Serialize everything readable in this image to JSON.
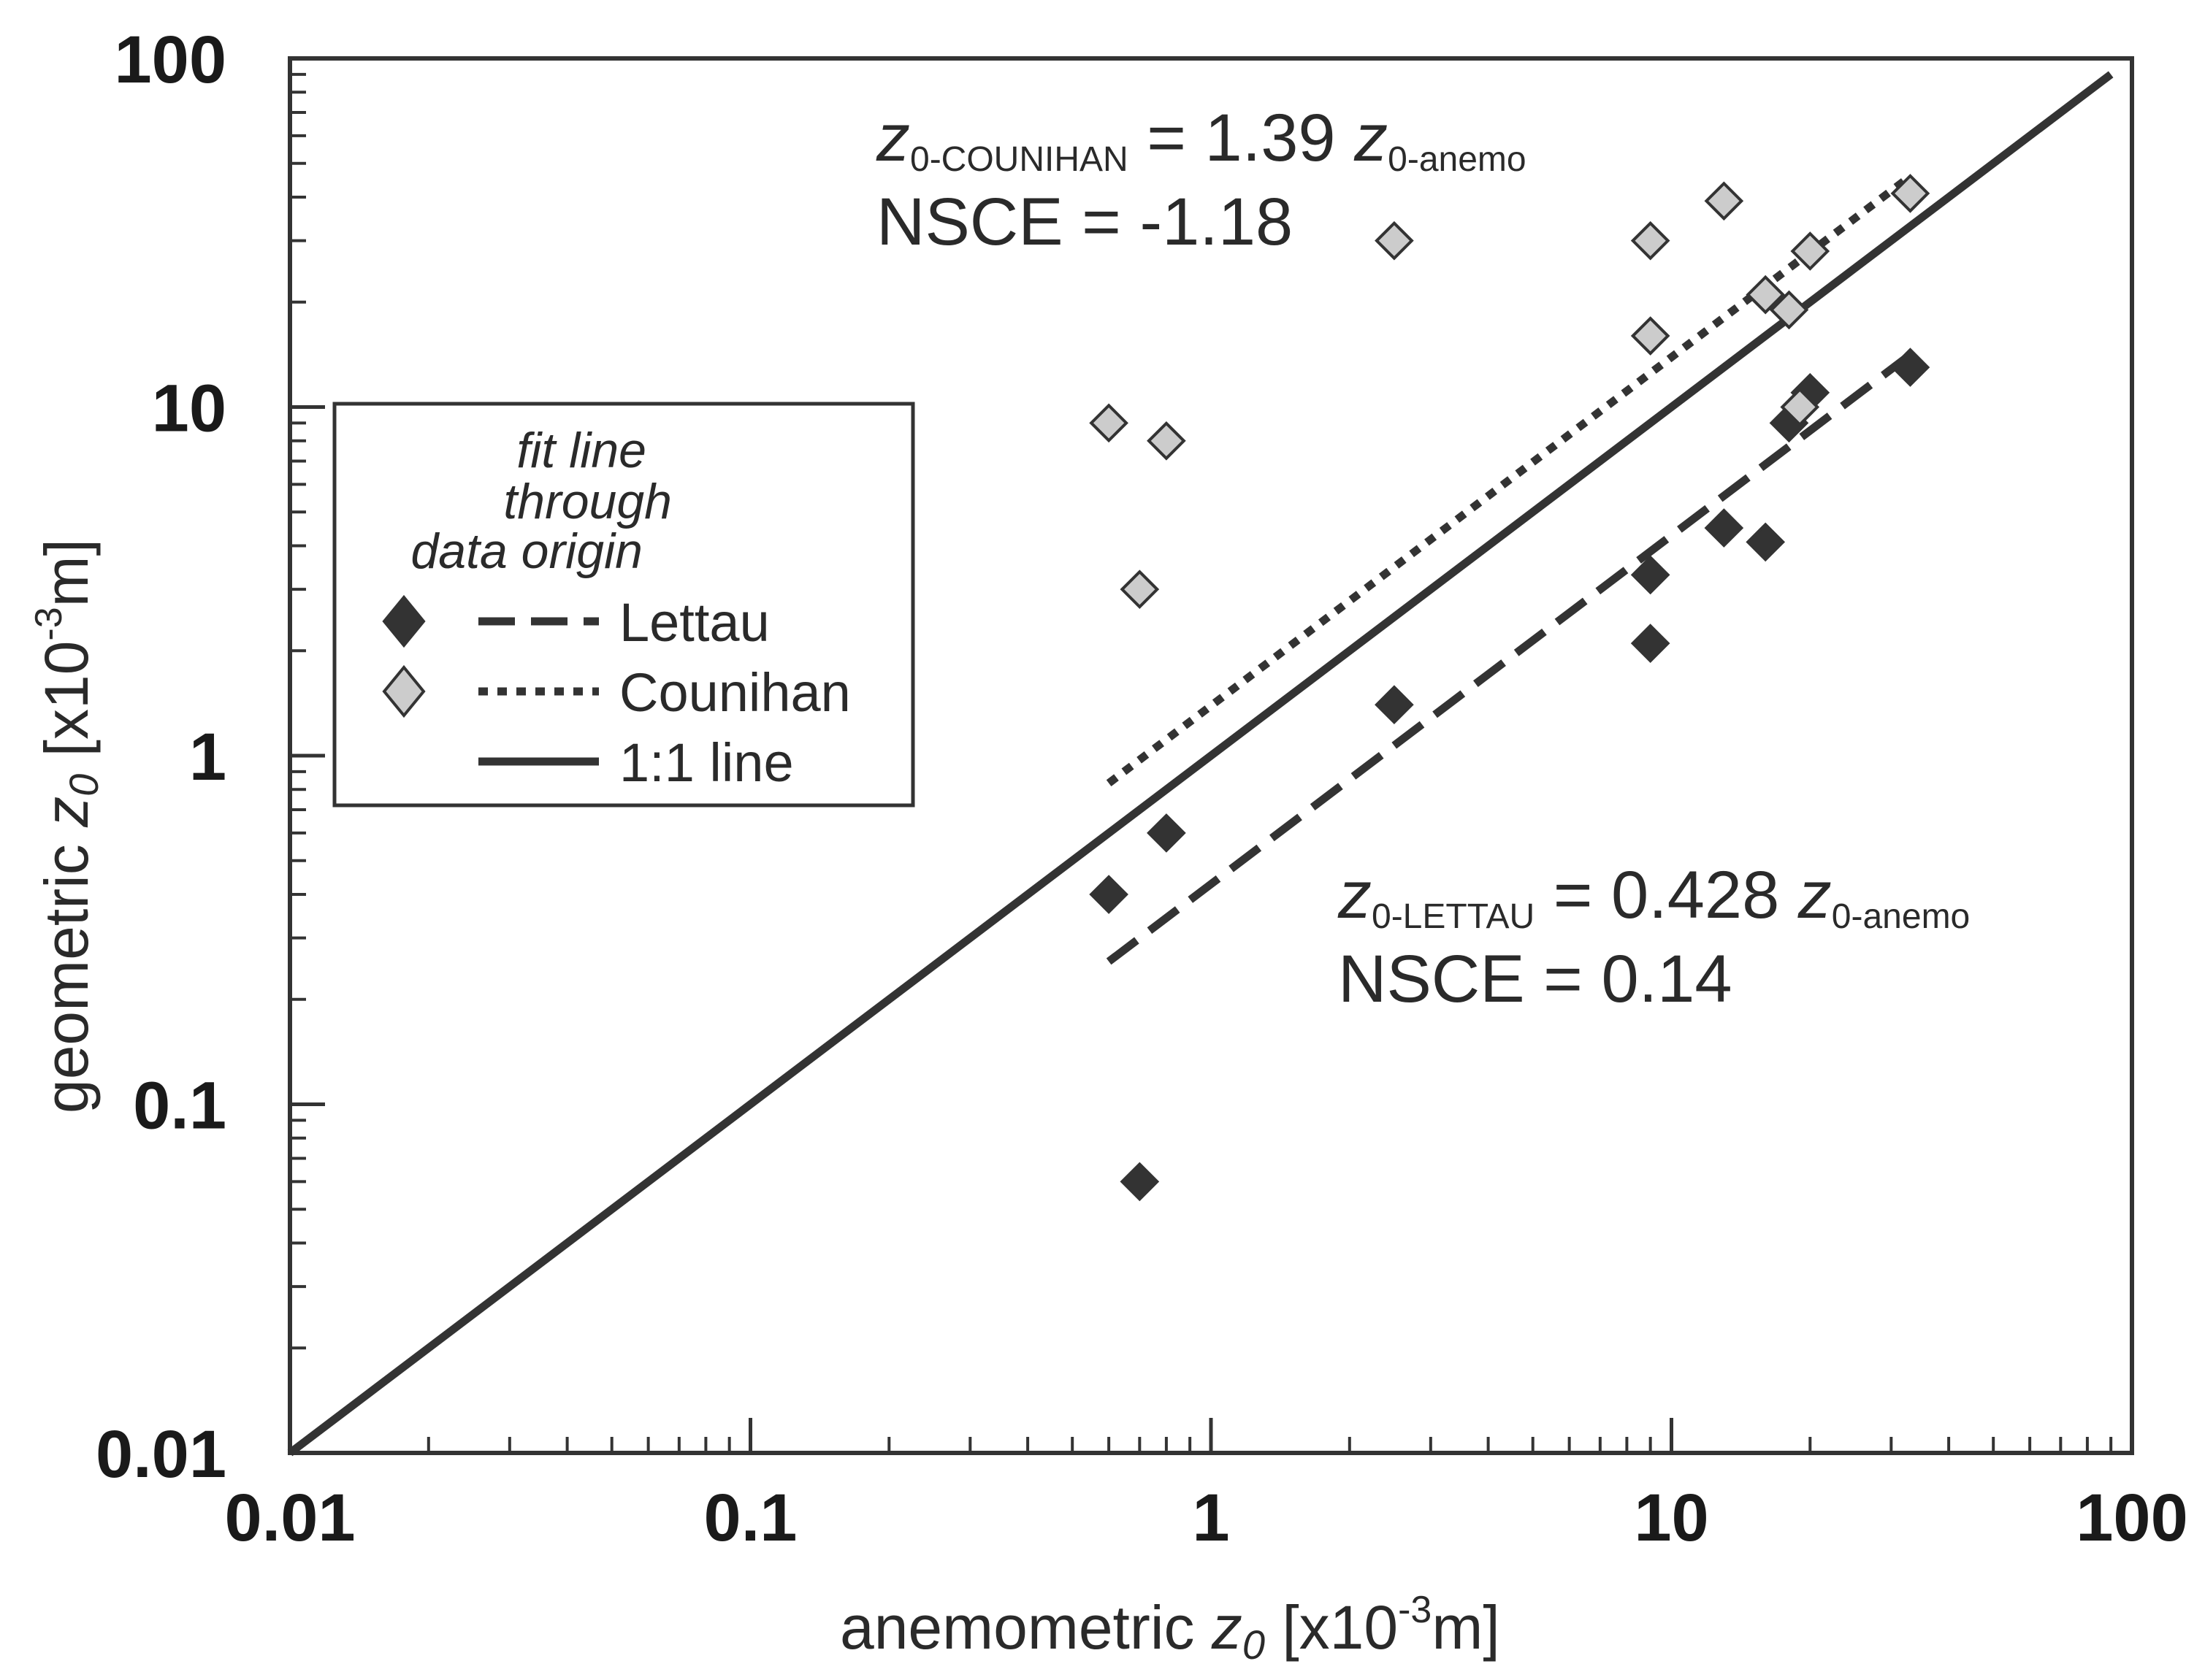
{
  "chart_data": {
    "type": "scatter",
    "xscale": "log",
    "yscale": "log",
    "xlim": [
      0.01,
      100
    ],
    "ylim": [
      0.01,
      100
    ],
    "xlabel": {
      "pre": "anemometric ",
      "var": "z",
      "sub": "0",
      "unit_pre": " [x10",
      "exp": "-3",
      "unit_post": "m]"
    },
    "ylabel": {
      "pre": "geometric ",
      "var": "z",
      "sub": "0",
      "unit_pre": " [x10",
      "exp": "-3",
      "unit_post": "m]"
    },
    "xticks": [
      0.01,
      0.1,
      1,
      10,
      100
    ],
    "xtick_labels": [
      "0.01",
      "0.1",
      "1",
      "10",
      "100"
    ],
    "yticks": [
      0.01,
      0.1,
      1,
      10,
      100
    ],
    "ytick_labels": [
      "0.01",
      "0.1",
      "1",
      "10",
      "100"
    ],
    "series": [
      {
        "name": "Lettau",
        "marker": "filled-diamond",
        "color": "#333333",
        "points": [
          [
            0.6,
            0.4
          ],
          [
            0.7,
            0.06
          ],
          [
            0.8,
            0.6
          ],
          [
            2.5,
            1.4
          ],
          [
            9,
            3.3
          ],
          [
            9,
            2.1
          ],
          [
            13,
            4.5
          ],
          [
            16,
            4.1
          ],
          [
            18,
            9
          ],
          [
            20,
            11
          ],
          [
            33,
            13
          ]
        ]
      },
      {
        "name": "Counihan",
        "marker": "open-diamond",
        "color": "#cccccc",
        "points": [
          [
            0.6,
            9
          ],
          [
            0.7,
            3
          ],
          [
            0.8,
            8
          ],
          [
            2.5,
            30
          ],
          [
            9,
            30
          ],
          [
            9,
            16
          ],
          [
            13,
            39
          ],
          [
            16,
            21
          ],
          [
            18,
            19
          ],
          [
            19,
            10
          ],
          [
            20,
            28
          ],
          [
            33,
            41
          ]
        ]
      }
    ],
    "fit_lines": [
      {
        "name": "Lettau fit",
        "style": "dashed",
        "slope": 0.428,
        "x_range": [
          0.6,
          33
        ]
      },
      {
        "name": "Counihan fit",
        "style": "dotted",
        "slope": 1.39,
        "x_range": [
          0.6,
          33
        ]
      },
      {
        "name": "1:1 line",
        "style": "solid",
        "slope": 1,
        "x_range": [
          0.01,
          90
        ]
      }
    ],
    "annotations": {
      "counihan": {
        "var": "z",
        "sub": "0-COUNIHAN",
        "eq": " = 1.39 ",
        "var2": "z",
        "sub2": "0-anemo",
        "nsce": "NSCE = -1.18"
      },
      "lettau": {
        "var": "z",
        "sub": "0-LETTAU",
        "eq": " = 0.428 ",
        "var2": "z",
        "sub2": "0-anemo",
        "nsce": "NSCE = 0.14"
      }
    },
    "legend": {
      "position": "center-left",
      "heading": [
        "fit line",
        "through",
        "data origin"
      ],
      "items": [
        {
          "label": "Lettau",
          "marker": "filled-diamond",
          "line": "dashed"
        },
        {
          "label": "Counihan",
          "marker": "open-diamond",
          "line": "dotted"
        },
        {
          "label": "1:1 line",
          "marker": "none",
          "line": "solid"
        }
      ]
    }
  }
}
